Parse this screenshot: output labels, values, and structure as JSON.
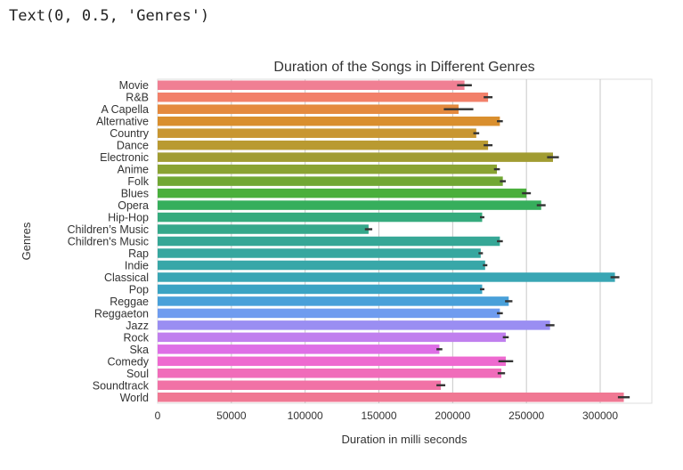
{
  "output_text": "Text(0, 0.5, 'Genres')",
  "chart_data": {
    "type": "bar",
    "orientation": "horizontal",
    "title": "Duration of the Songs in Different Genres",
    "xlabel": "Duration in milli seconds",
    "ylabel": "Genres",
    "xlim": [
      0,
      335000
    ],
    "xticks": [
      0,
      50000,
      100000,
      150000,
      200000,
      250000,
      300000
    ],
    "grid": "vertical",
    "categories": [
      "Movie",
      "R&B",
      "A Capella",
      "Alternative",
      "Country",
      "Dance",
      "Electronic",
      "Anime",
      "Folk",
      "Blues",
      "Opera",
      "Hip-Hop",
      "Children’s Music",
      "Children's Music",
      "Rap",
      "Indie",
      "Classical",
      "Pop",
      "Reggae",
      "Reggaeton",
      "Jazz",
      "Rock",
      "Ska",
      "Comedy",
      "Soul",
      "Soundtrack",
      "World"
    ],
    "values": [
      208000,
      224000,
      204000,
      232000,
      216000,
      224000,
      268000,
      230000,
      234000,
      250000,
      260000,
      220000,
      143000,
      232000,
      219000,
      222000,
      310000,
      220000,
      238000,
      232000,
      266000,
      236000,
      191000,
      236000,
      233000,
      192000,
      316000
    ],
    "errors": [
      5000,
      3000,
      10000,
      2000,
      2000,
      3000,
      4000,
      2000,
      2000,
      3000,
      3000,
      1500,
      2500,
      2000,
      1500,
      1500,
      3000,
      1500,
      2500,
      2000,
      3000,
      2000,
      2000,
      5000,
      2500,
      3000,
      4000
    ],
    "colors": [
      "#f07f93",
      "#f2806a",
      "#e48a3e",
      "#d98f2e",
      "#c89632",
      "#b99a31",
      "#a19c32",
      "#8aa333",
      "#71a734",
      "#4aaf3c",
      "#36ae5c",
      "#35ab7d",
      "#35a88b",
      "#36a796",
      "#37a79f",
      "#38a7a8",
      "#39a6b4",
      "#3aa3c3",
      "#49a0d9",
      "#6f9cef",
      "#9a8ef2",
      "#c07fee",
      "#de6fe6",
      "#ee6ad0",
      "#f06cba",
      "#f172a6",
      "#f07893"
    ]
  }
}
